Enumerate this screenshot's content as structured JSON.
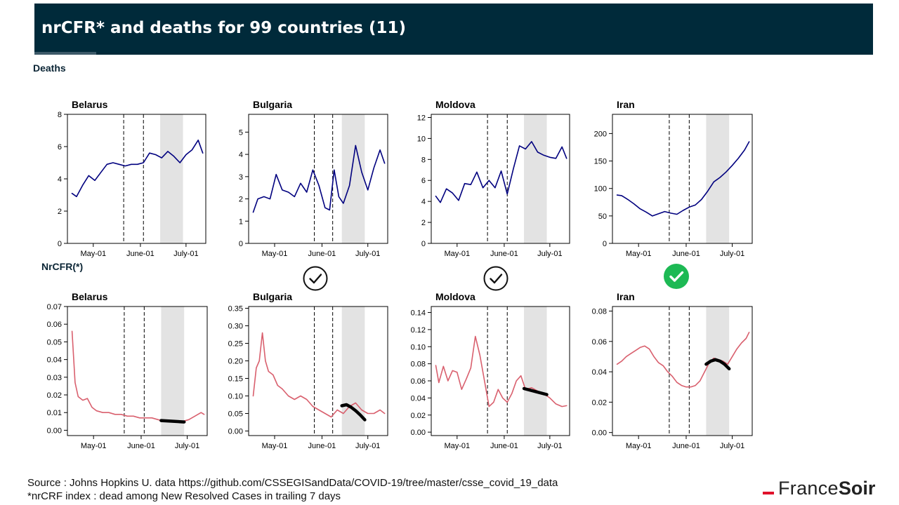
{
  "header": {
    "title": "nrCFR* and deaths for 99 countries (11)"
  },
  "sections": {
    "deaths_label": "Deaths",
    "nrcfr_label": "NrCFR(*)"
  },
  "footer": {
    "source": "Source : Johns Hopkins U. data https://github.com/CSSEGISandData/COVID-19/tree/master/csse_covid_19_data",
    "note": "*nrCRF index : dead among New Resolved  Cases in trailing 7 days"
  },
  "logo": {
    "part1": "France",
    "part2": "Soir",
    "accent_color": "#e0112b"
  },
  "colors": {
    "deaths_line": "#00007f",
    "nrcfr_line": "#d9606e",
    "trend": "#000000",
    "shade": "#e3e3e3",
    "check_green": "#1db954",
    "header_bg": "#002a3a"
  },
  "checks": [
    {
      "country": "Bulgaria",
      "icon": "check-circle-outline-icon"
    },
    {
      "country": "Moldova",
      "icon": "check-circle-outline-icon"
    },
    {
      "country": "Iran",
      "icon": "check-circle-green-icon"
    }
  ],
  "chart_data": [
    {
      "type": "line",
      "row": "deaths",
      "title": "Belarus",
      "ylim": [
        0,
        8
      ],
      "yticks": [
        0,
        2,
        4,
        6,
        8
      ],
      "xticks": [
        "May-01",
        "June-01",
        "July-01"
      ],
      "x_start": "2020-04-14",
      "x_end": "2020-07-14",
      "vlines": [
        "2020-05-21",
        "2020-06-03"
      ],
      "shade": [
        "2020-06-14",
        "2020-06-29"
      ],
      "series": [
        {
          "x": [
            "2020-04-17",
            "2020-04-20",
            "2020-04-24",
            "2020-04-28",
            "2020-05-02",
            "2020-05-06",
            "2020-05-10",
            "2020-05-14",
            "2020-05-18",
            "2020-05-22",
            "2020-05-26",
            "2020-05-30",
            "2020-06-03",
            "2020-06-07",
            "2020-06-11",
            "2020-06-15",
            "2020-06-19",
            "2020-06-23",
            "2020-06-27",
            "2020-07-01",
            "2020-07-05",
            "2020-07-09",
            "2020-07-12"
          ],
          "values": [
            3.1,
            2.9,
            3.6,
            4.2,
            3.9,
            4.4,
            4.9,
            5.0,
            4.9,
            4.8,
            4.9,
            4.9,
            5.0,
            5.6,
            5.5,
            5.3,
            5.7,
            5.4,
            5.0,
            5.5,
            5.8,
            6.4,
            5.6
          ]
        }
      ]
    },
    {
      "type": "line",
      "row": "deaths",
      "title": "Bulgaria",
      "ylim": [
        0,
        5.8
      ],
      "yticks": [
        0,
        1,
        2,
        3,
        4,
        5
      ],
      "xticks": [
        "May-01",
        "June-01",
        "July-01"
      ],
      "x_start": "2020-04-14",
      "x_end": "2020-07-14",
      "vlines": [
        "2020-05-27",
        "2020-06-08"
      ],
      "shade": [
        "2020-06-14",
        "2020-06-29"
      ],
      "series": [
        {
          "x": [
            "2020-04-17",
            "2020-04-20",
            "2020-04-24",
            "2020-04-28",
            "2020-05-02",
            "2020-05-06",
            "2020-05-10",
            "2020-05-14",
            "2020-05-18",
            "2020-05-22",
            "2020-05-26",
            "2020-05-30",
            "2020-06-03",
            "2020-06-06",
            "2020-06-09",
            "2020-06-12",
            "2020-06-15",
            "2020-06-19",
            "2020-06-23",
            "2020-06-27",
            "2020-07-01",
            "2020-07-05",
            "2020-07-09",
            "2020-07-12"
          ],
          "values": [
            1.4,
            2.0,
            2.1,
            2.0,
            3.1,
            2.4,
            2.3,
            2.1,
            2.7,
            2.3,
            3.3,
            2.6,
            1.6,
            1.5,
            3.3,
            2.1,
            1.8,
            2.6,
            4.4,
            3.2,
            2.4,
            3.4,
            4.2,
            3.6
          ]
        }
      ]
    },
    {
      "type": "line",
      "row": "deaths",
      "title": "Moldova",
      "ylim": [
        0,
        12.3
      ],
      "yticks": [
        0,
        2,
        4,
        6,
        8,
        10,
        12
      ],
      "xticks": [
        "May-01",
        "June-01",
        "July-01"
      ],
      "x_start": "2020-04-14",
      "x_end": "2020-07-14",
      "vlines": [
        "2020-05-21",
        "2020-06-03"
      ],
      "shade": [
        "2020-06-14",
        "2020-06-29"
      ],
      "series": [
        {
          "x": [
            "2020-04-17",
            "2020-04-20",
            "2020-04-24",
            "2020-04-28",
            "2020-05-02",
            "2020-05-06",
            "2020-05-10",
            "2020-05-14",
            "2020-05-18",
            "2020-05-22",
            "2020-05-26",
            "2020-05-30",
            "2020-06-03",
            "2020-06-07",
            "2020-06-11",
            "2020-06-15",
            "2020-06-19",
            "2020-06-23",
            "2020-06-27",
            "2020-07-01",
            "2020-07-05",
            "2020-07-09",
            "2020-07-12"
          ],
          "values": [
            4.5,
            3.9,
            5.2,
            4.8,
            4.1,
            5.7,
            5.6,
            6.8,
            5.3,
            6.0,
            5.3,
            6.9,
            4.7,
            7.1,
            9.3,
            9.0,
            9.7,
            8.7,
            8.4,
            8.2,
            8.1,
            9.2,
            8.1
          ]
        }
      ]
    },
    {
      "type": "line",
      "row": "deaths",
      "title": "Iran",
      "ylim": [
        0,
        235
      ],
      "yticks": [
        0,
        50,
        100,
        150,
        200
      ],
      "xticks": [
        "May-01",
        "June-01",
        "July-01"
      ],
      "x_start": "2020-04-14",
      "x_end": "2020-07-14",
      "vlines": [
        "2020-05-21",
        "2020-06-03"
      ],
      "shade": [
        "2020-06-14",
        "2020-06-29"
      ],
      "series": [
        {
          "x": [
            "2020-04-17",
            "2020-04-20",
            "2020-04-24",
            "2020-04-28",
            "2020-05-02",
            "2020-05-06",
            "2020-05-10",
            "2020-05-14",
            "2020-05-18",
            "2020-05-22",
            "2020-05-26",
            "2020-05-30",
            "2020-06-03",
            "2020-06-07",
            "2020-06-11",
            "2020-06-15",
            "2020-06-19",
            "2020-06-23",
            "2020-06-27",
            "2020-07-01",
            "2020-07-05",
            "2020-07-09",
            "2020-07-12"
          ],
          "values": [
            88,
            87,
            80,
            72,
            63,
            57,
            50,
            54,
            58,
            55,
            53,
            60,
            66,
            70,
            80,
            95,
            112,
            120,
            130,
            142,
            155,
            170,
            185
          ]
        }
      ]
    },
    {
      "type": "line",
      "row": "nrcfr",
      "title": "Belarus",
      "ylim": [
        -0.003,
        0.07
      ],
      "yticks": [
        0.0,
        0.01,
        0.02,
        0.03,
        0.04,
        0.05,
        0.06,
        0.07
      ],
      "decimals": 2,
      "xticks": [
        "May-01",
        "June-01",
        "July-01"
      ],
      "x_start": "2020-04-14",
      "x_end": "2020-07-14",
      "vlines": [
        "2020-05-21",
        "2020-06-03"
      ],
      "shade": [
        "2020-06-14",
        "2020-06-29"
      ],
      "series": [
        {
          "x": [
            "2020-04-17",
            "2020-04-19",
            "2020-04-21",
            "2020-04-24",
            "2020-04-27",
            "2020-04-30",
            "2020-05-03",
            "2020-05-07",
            "2020-05-11",
            "2020-05-15",
            "2020-05-19",
            "2020-05-23",
            "2020-05-27",
            "2020-05-31",
            "2020-06-04",
            "2020-06-08",
            "2020-06-12",
            "2020-06-16",
            "2020-06-20",
            "2020-06-24",
            "2020-06-28",
            "2020-07-02",
            "2020-07-06",
            "2020-07-10",
            "2020-07-12"
          ],
          "values": [
            0.056,
            0.027,
            0.019,
            0.017,
            0.018,
            0.013,
            0.011,
            0.01,
            0.01,
            0.009,
            0.009,
            0.008,
            0.008,
            0.007,
            0.007,
            0.007,
            0.006,
            0.005,
            0.005,
            0.005,
            0.005,
            0.006,
            0.008,
            0.01,
            0.009
          ]
        },
        {
          "name": "trend",
          "x": [
            "2020-06-14",
            "2020-06-29"
          ],
          "values": [
            0.0055,
            0.0047
          ]
        }
      ]
    },
    {
      "type": "line",
      "row": "nrcfr",
      "title": "Bulgaria",
      "ylim": [
        -0.013,
        0.355
      ],
      "yticks": [
        0.0,
        0.05,
        0.1,
        0.15,
        0.2,
        0.25,
        0.3,
        0.35
      ],
      "decimals": 2,
      "xticks": [
        "May-01",
        "June-01",
        "July-01"
      ],
      "x_start": "2020-04-14",
      "x_end": "2020-07-14",
      "vlines": [
        "2020-05-27",
        "2020-06-08"
      ],
      "shade": [
        "2020-06-14",
        "2020-06-29"
      ],
      "series": [
        {
          "x": [
            "2020-04-17",
            "2020-04-19",
            "2020-04-21",
            "2020-04-23",
            "2020-04-25",
            "2020-04-27",
            "2020-04-30",
            "2020-05-03",
            "2020-05-06",
            "2020-05-10",
            "2020-05-14",
            "2020-05-18",
            "2020-05-22",
            "2020-05-26",
            "2020-05-30",
            "2020-06-03",
            "2020-06-07",
            "2020-06-11",
            "2020-06-15",
            "2020-06-19",
            "2020-06-23",
            "2020-06-27",
            "2020-07-01",
            "2020-07-05",
            "2020-07-09",
            "2020-07-12"
          ],
          "values": [
            0.1,
            0.18,
            0.2,
            0.28,
            0.2,
            0.17,
            0.16,
            0.13,
            0.12,
            0.1,
            0.09,
            0.1,
            0.09,
            0.07,
            0.06,
            0.05,
            0.04,
            0.06,
            0.05,
            0.07,
            0.08,
            0.06,
            0.05,
            0.05,
            0.06,
            0.05
          ]
        },
        {
          "name": "trend",
          "x": [
            "2020-06-14",
            "2020-06-17",
            "2020-06-20",
            "2020-06-23",
            "2020-06-26",
            "2020-06-29"
          ],
          "values": [
            0.072,
            0.075,
            0.068,
            0.058,
            0.046,
            0.032
          ]
        }
      ]
    },
    {
      "type": "line",
      "row": "nrcfr",
      "title": "Moldova",
      "ylim": [
        -0.004,
        0.147
      ],
      "yticks": [
        0.0,
        0.02,
        0.04,
        0.06,
        0.08,
        0.1,
        0.12,
        0.14
      ],
      "decimals": 2,
      "xticks": [
        "May-01",
        "June-01",
        "July-01"
      ],
      "x_start": "2020-04-14",
      "x_end": "2020-07-14",
      "vlines": [
        "2020-05-21",
        "2020-06-03"
      ],
      "shade": [
        "2020-06-14",
        "2020-06-29"
      ],
      "series": [
        {
          "x": [
            "2020-04-17",
            "2020-04-19",
            "2020-04-22",
            "2020-04-25",
            "2020-04-28",
            "2020-05-01",
            "2020-05-04",
            "2020-05-07",
            "2020-05-10",
            "2020-05-13",
            "2020-05-16",
            "2020-05-19",
            "2020-05-22",
            "2020-05-25",
            "2020-05-28",
            "2020-05-31",
            "2020-06-03",
            "2020-06-06",
            "2020-06-09",
            "2020-06-12",
            "2020-06-15",
            "2020-06-19",
            "2020-06-23",
            "2020-06-27",
            "2020-07-01",
            "2020-07-05",
            "2020-07-09",
            "2020-07-12"
          ],
          "values": [
            0.078,
            0.058,
            0.077,
            0.06,
            0.072,
            0.07,
            0.05,
            0.062,
            0.075,
            0.112,
            0.09,
            0.06,
            0.03,
            0.035,
            0.05,
            0.04,
            0.035,
            0.045,
            0.06,
            0.066,
            0.05,
            0.052,
            0.048,
            0.045,
            0.04,
            0.033,
            0.03,
            0.031
          ]
        },
        {
          "name": "trend",
          "x": [
            "2020-06-14",
            "2020-06-29"
          ],
          "values": [
            0.051,
            0.044
          ]
        }
      ]
    },
    {
      "type": "line",
      "row": "nrcfr",
      "title": "Iran",
      "ylim": [
        -0.002,
        0.083
      ],
      "yticks": [
        0.0,
        0.02,
        0.04,
        0.06,
        0.08
      ],
      "decimals": 2,
      "xticks": [
        "May-01",
        "June-01",
        "July-01"
      ],
      "x_start": "2020-04-14",
      "x_end": "2020-07-14",
      "vlines": [
        "2020-05-21",
        "2020-06-03"
      ],
      "shade": [
        "2020-06-14",
        "2020-06-29"
      ],
      "series": [
        {
          "x": [
            "2020-04-17",
            "2020-04-20",
            "2020-04-23",
            "2020-04-26",
            "2020-04-29",
            "2020-05-02",
            "2020-05-05",
            "2020-05-08",
            "2020-05-11",
            "2020-05-14",
            "2020-05-17",
            "2020-05-20",
            "2020-05-23",
            "2020-05-26",
            "2020-05-29",
            "2020-06-01",
            "2020-06-04",
            "2020-06-07",
            "2020-06-10",
            "2020-06-13",
            "2020-06-16",
            "2020-06-19",
            "2020-06-22",
            "2020-06-25",
            "2020-06-28",
            "2020-07-01",
            "2020-07-04",
            "2020-07-07",
            "2020-07-10",
            "2020-07-12"
          ],
          "values": [
            0.045,
            0.047,
            0.05,
            0.052,
            0.054,
            0.056,
            0.057,
            0.055,
            0.05,
            0.046,
            0.044,
            0.04,
            0.037,
            0.033,
            0.031,
            0.03,
            0.03,
            0.031,
            0.034,
            0.04,
            0.046,
            0.049,
            0.048,
            0.047,
            0.045,
            0.05,
            0.055,
            0.059,
            0.062,
            0.066
          ]
        },
        {
          "name": "trend",
          "x": [
            "2020-06-14",
            "2020-06-17",
            "2020-06-20",
            "2020-06-23",
            "2020-06-26",
            "2020-06-29"
          ],
          "values": [
            0.045,
            0.047,
            0.048,
            0.047,
            0.045,
            0.042
          ]
        }
      ]
    }
  ]
}
